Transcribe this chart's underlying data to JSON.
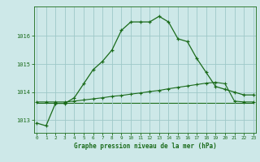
{
  "hours": [
    0,
    1,
    2,
    3,
    4,
    5,
    6,
    7,
    8,
    9,
    10,
    11,
    12,
    13,
    14,
    15,
    16,
    17,
    18,
    19,
    20,
    21,
    22,
    23
  ],
  "line1": [
    1012.9,
    1012.8,
    1013.6,
    1013.6,
    1013.8,
    1014.3,
    1014.8,
    1015.1,
    1015.5,
    1016.2,
    1016.5,
    1016.5,
    1016.5,
    1016.7,
    1016.5,
    1015.9,
    1015.8,
    1015.2,
    1014.7,
    1014.2,
    1014.1,
    1014.0,
    1013.9,
    1013.9
  ],
  "line2": [
    1013.65,
    1013.65,
    1013.65,
    1013.65,
    1013.68,
    1013.72,
    1013.76,
    1013.8,
    1013.85,
    1013.88,
    1013.93,
    1013.97,
    1014.02,
    1014.06,
    1014.12,
    1014.17,
    1014.22,
    1014.27,
    1014.32,
    1014.35,
    1014.3,
    1013.68,
    1013.65,
    1013.65
  ],
  "line3": [
    1013.63,
    1013.63,
    1013.63,
    1013.63,
    1013.63,
    1013.63,
    1013.63,
    1013.63,
    1013.63,
    1013.63,
    1013.63,
    1013.63,
    1013.63,
    1013.63,
    1013.63,
    1013.63,
    1013.63,
    1013.63,
    1013.63,
    1013.63,
    1013.63,
    1013.63,
    1013.63,
    1013.63
  ],
  "line_color": "#1a6b1a",
  "background_color": "#cde8e8",
  "grid_color": "#9ec8c8",
  "xlabel": "Graphe pression niveau de la mer (hPa)",
  "ylim_min": 1012.55,
  "ylim_max": 1017.05,
  "yticks": [
    1013,
    1014,
    1015,
    1016
  ],
  "xticks": [
    0,
    1,
    2,
    3,
    4,
    5,
    6,
    7,
    8,
    9,
    10,
    11,
    12,
    13,
    14,
    15,
    16,
    17,
    18,
    19,
    20,
    21,
    22,
    23
  ]
}
